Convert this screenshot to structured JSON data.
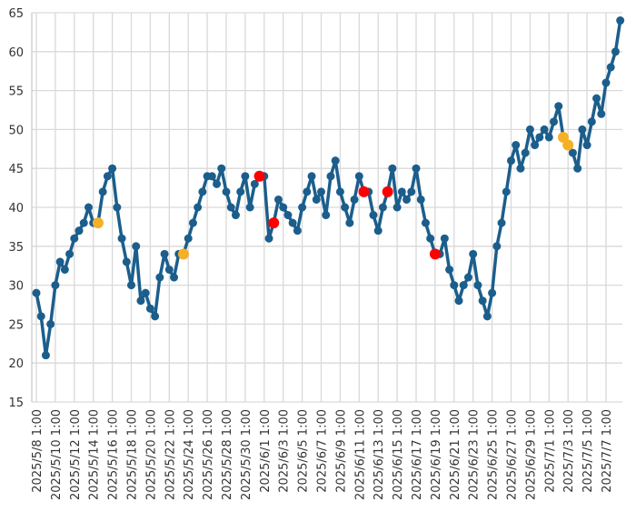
{
  "chart_data": {
    "type": "line",
    "x": [
      "2025/5/8 1:00",
      "2025/5/8 13:00",
      "2025/5/9 1:00",
      "2025/5/9 13:00",
      "2025/5/10 1:00",
      "2025/5/10 13:00",
      "2025/5/11 1:00",
      "2025/5/11 13:00",
      "2025/5/12 1:00",
      "2025/5/12 13:00",
      "2025/5/13 1:00",
      "2025/5/13 13:00",
      "2025/5/14 1:00",
      "2025/5/14 13:00",
      "2025/5/15 1:00",
      "2025/5/15 13:00",
      "2025/5/16 1:00",
      "2025/5/16 13:00",
      "2025/5/17 1:00",
      "2025/5/17 13:00",
      "2025/5/18 1:00",
      "2025/5/18 13:00",
      "2025/5/19 1:00",
      "2025/5/19 13:00",
      "2025/5/20 1:00",
      "2025/5/20 13:00",
      "2025/5/21 1:00",
      "2025/5/21 13:00",
      "2025/5/22 1:00",
      "2025/5/22 13:00",
      "2025/5/23 1:00",
      "2025/5/23 13:00",
      "2025/5/24 1:00",
      "2025/5/24 13:00",
      "2025/5/25 1:00",
      "2025/5/25 13:00",
      "2025/5/26 1:00",
      "2025/5/26 13:00",
      "2025/5/27 1:00",
      "2025/5/27 13:00",
      "2025/5/28 1:00",
      "2025/5/28 13:00",
      "2025/5/29 1:00",
      "2025/5/29 13:00",
      "2025/5/30 1:00",
      "2025/5/30 13:00",
      "2025/5/31 1:00",
      "2025/5/31 13:00",
      "2025/6/1 1:00",
      "2025/6/1 13:00",
      "2025/6/2 1:00",
      "2025/6/2 13:00",
      "2025/6/3 1:00",
      "2025/6/3 13:00",
      "2025/6/4 1:00",
      "2025/6/4 13:00",
      "2025/6/5 1:00",
      "2025/6/5 13:00",
      "2025/6/6 1:00",
      "2025/6/6 13:00",
      "2025/6/7 1:00",
      "2025/6/7 13:00",
      "2025/6/8 1:00",
      "2025/6/8 13:00",
      "2025/6/9 1:00",
      "2025/6/9 13:00",
      "2025/6/10 1:00",
      "2025/6/10 13:00",
      "2025/6/11 1:00",
      "2025/6/11 13:00",
      "2025/6/12 1:00",
      "2025/6/12 13:00",
      "2025/6/13 1:00",
      "2025/6/13 13:00",
      "2025/6/14 1:00",
      "2025/6/14 13:00",
      "2025/6/15 1:00",
      "2025/6/15 13:00",
      "2025/6/16 1:00",
      "2025/6/16 13:00",
      "2025/6/17 1:00",
      "2025/6/17 13:00",
      "2025/6/18 1:00",
      "2025/6/18 13:00",
      "2025/6/19 1:00",
      "2025/6/19 13:00",
      "2025/6/20 1:00",
      "2025/6/20 13:00",
      "2025/6/21 1:00",
      "2025/6/21 13:00",
      "2025/6/22 1:00",
      "2025/6/22 13:00",
      "2025/6/23 1:00",
      "2025/6/23 13:00",
      "2025/6/24 1:00",
      "2025/6/24 13:00",
      "2025/6/25 1:00",
      "2025/6/25 13:00",
      "2025/6/26 1:00",
      "2025/6/26 13:00",
      "2025/6/27 1:00",
      "2025/6/27 13:00",
      "2025/6/28 1:00",
      "2025/6/28 13:00",
      "2025/6/29 1:00",
      "2025/6/29 13:00",
      "2025/6/30 1:00",
      "2025/6/30 13:00",
      "2025/7/1 1:00",
      "2025/7/1 13:00",
      "2025/7/2 1:00",
      "2025/7/2 13:00",
      "2025/7/3 1:00",
      "2025/7/3 13:00",
      "2025/7/4 1:00",
      "2025/7/4 13:00",
      "2025/7/5 1:00",
      "2025/7/5 13:00",
      "2025/7/6 1:00",
      "2025/7/6 13:00",
      "2025/7/7 1:00",
      "2025/7/7 13:00",
      "2025/7/8 1:00",
      "2025/7/8 13:00"
    ],
    "values": [
      29,
      26,
      21,
      25,
      30,
      33,
      32,
      34,
      36,
      37,
      38,
      40,
      38,
      38,
      42,
      44,
      45,
      40,
      36,
      33,
      30,
      35,
      28,
      29,
      27,
      26,
      31,
      34,
      32,
      31,
      34,
      34,
      36,
      38,
      40,
      42,
      44,
      44,
      43,
      45,
      42,
      40,
      39,
      42,
      44,
      40,
      43,
      44,
      44,
      36,
      38,
      41,
      40,
      39,
      38,
      37,
      40,
      42,
      44,
      41,
      42,
      39,
      44,
      46,
      42,
      40,
      38,
      41,
      44,
      42,
      42,
      39,
      37,
      40,
      42,
      45,
      40,
      42,
      41,
      42,
      45,
      41,
      38,
      36,
      34,
      34,
      36,
      32,
      30,
      28,
      30,
      31,
      34,
      30,
      28,
      26,
      29,
      35,
      38,
      42,
      46,
      48,
      45,
      47,
      50,
      48,
      49,
      50,
      49,
      51,
      53,
      49,
      48,
      47,
      45,
      50,
      48,
      51,
      54,
      52,
      56,
      58,
      60,
      64
    ],
    "color": "#1b5e8c",
    "markers": [
      {
        "x": "2025/5/14 13:00",
        "value": 38,
        "color": "#f5b027"
      },
      {
        "x": "2025/5/23 13:00",
        "value": 34,
        "color": "#f5b027"
      },
      {
        "x": "2025/5/31 13:00",
        "value": 44,
        "color": "#ff0000"
      },
      {
        "x": "2025/6/2 1:00",
        "value": 38,
        "color": "#ff0000"
      },
      {
        "x": "2025/6/11 13:00",
        "value": 42,
        "color": "#ff0000"
      },
      {
        "x": "2025/6/14 1:00",
        "value": 42,
        "color": "#ff0000"
      },
      {
        "x": "2025/6/19 1:00",
        "value": 34,
        "color": "#ff0000"
      },
      {
        "x": "2025/7/2 13:00",
        "value": 49,
        "color": "#f5b027"
      },
      {
        "x": "2025/7/3 1:00",
        "value": 48,
        "color": "#f5b027"
      }
    ],
    "xticks": [
      "2025/5/8 1:00",
      "2025/5/10 1:00",
      "2025/5/12 1:00",
      "2025/5/14 1:00",
      "2025/5/16 1:00",
      "2025/5/18 1:00",
      "2025/5/20 1:00",
      "2025/5/22 1:00",
      "2025/5/24 1:00",
      "2025/5/26 1:00",
      "2025/5/28 1:00",
      "2025/5/30 1:00",
      "2025/6/1 1:00",
      "2025/6/3 1:00",
      "2025/6/5 1:00",
      "2025/6/7 1:00",
      "2025/6/9 1:00",
      "2025/6/11 1:00",
      "2025/6/13 1:00",
      "2025/6/15 1:00",
      "2025/6/17 1:00",
      "2025/6/19 1:00",
      "2025/6/21 1:00",
      "2025/6/23 1:00",
      "2025/6/25 1:00",
      "2025/6/27 1:00",
      "2025/6/29 1:00",
      "2025/7/1 1:00",
      "2025/7/3 1:00",
      "2025/7/5 1:00",
      "2025/7/7 1:00"
    ],
    "ylim": [
      15,
      65
    ],
    "yticks": [
      15,
      20,
      25,
      30,
      35,
      40,
      45,
      50,
      55,
      60,
      65
    ],
    "grid": true
  }
}
